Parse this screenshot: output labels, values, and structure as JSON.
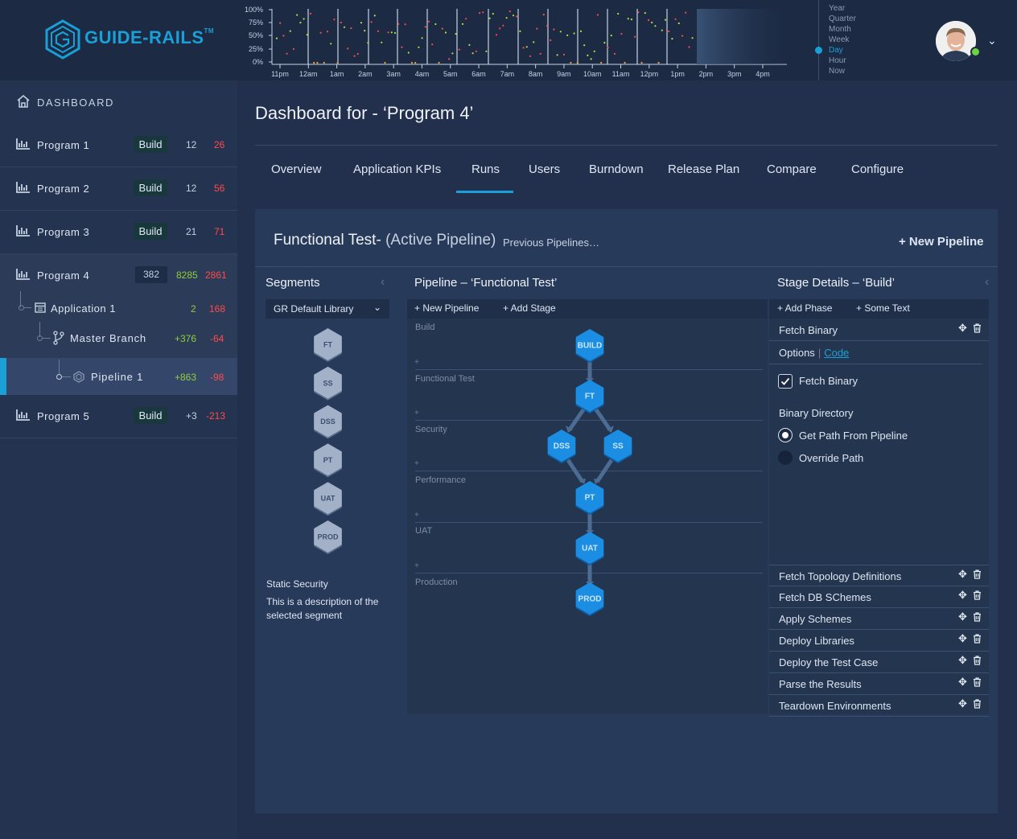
{
  "brand": {
    "logo_text": "GUIDE-RAILS",
    "logo_tm": "TM",
    "accent": "#1aa0d6"
  },
  "timeline": {
    "y_ticks": [
      "100%",
      "75%",
      "50%",
      "25%",
      "0%"
    ],
    "x_ticks": [
      "11pm",
      "12am",
      "1am",
      "2am",
      "3am",
      "4am",
      "5am",
      "6am",
      "7am",
      "8am",
      "9am",
      "10am",
      "11am",
      "12pm",
      "1pm",
      "2pm",
      "3pm",
      "4pm"
    ],
    "periods": [
      "Year",
      "Quarter",
      "Month",
      "Week",
      "Day",
      "Hour",
      "Now"
    ],
    "active_period": "Day"
  },
  "user": {
    "avatar_icon": "avatar-icon",
    "status": "online"
  },
  "sidebar": {
    "dashboard_label": "DASHBOARD",
    "programs": [
      {
        "name": "Program 1",
        "badge": "Build",
        "n1": "12",
        "n2": "26"
      },
      {
        "name": "Program 2",
        "badge": "Build",
        "n1": "12",
        "n2": "56"
      },
      {
        "name": "Program 3",
        "badge": "Build",
        "n1": "21",
        "n2": "71"
      },
      {
        "name": "Program 4",
        "badge": "382",
        "n1": "8285",
        "n2": "2861"
      },
      {
        "name": "Program 5",
        "badge": "Build",
        "n1": "+3",
        "n2": "-213"
      }
    ],
    "tree": {
      "application": {
        "name": "Application 1",
        "n1": "2",
        "n2": "168"
      },
      "branch": {
        "name": "Master Branch",
        "n1": "+376",
        "n2": "-64"
      },
      "pipeline": {
        "name": "Pipeline 1",
        "n1": "+863",
        "n2": "-98"
      }
    }
  },
  "main": {
    "title": "Dashboard for - ‘Program 4’",
    "tabs": [
      "Overview",
      "Application KPIs",
      "Runs",
      "Users",
      "Burndown",
      "Release Plan",
      "Compare",
      "Configure"
    ],
    "active_tab": "Runs"
  },
  "panel": {
    "title": "Functional Test-",
    "title_sub": "(Active Pipeline)",
    "previous_link": "Previous Pipelines…",
    "new_pipeline": "+ New Pipeline"
  },
  "segments": {
    "title": "Segments",
    "library": "GR Default Library",
    "items": [
      "FT",
      "SS",
      "DSS",
      "PT",
      "UAT",
      "PROD"
    ],
    "desc_title": "Static Security",
    "desc": "This is a description of the selected segment"
  },
  "pipeline": {
    "title": "Pipeline – ‘Functional Test’",
    "toolbar": [
      "+ New Pipeline",
      "+ Add Stage"
    ],
    "phases": [
      "Build",
      "Functional Test",
      "Security",
      "Performance",
      "UAT",
      "Production"
    ],
    "stages": [
      "BUILD",
      "FT",
      "DSS",
      "SS",
      "PT",
      "UAT",
      "PROD"
    ]
  },
  "stage_details": {
    "title": "Stage Details – ‘Build’",
    "toolbar": [
      "+ Add Phase",
      "+ Some Text"
    ],
    "open_step": "Fetch Binary",
    "options_label": "Options",
    "code_label": "Code",
    "fetch_binary_label": "Fetch Binary",
    "fetch_binary_checked": true,
    "binary_dir_label": "Binary Directory",
    "radio_options": [
      "Get Path From Pipeline",
      "Override Path"
    ],
    "radio_selected": "Get Path From Pipeline",
    "steps": [
      "Fetch Topology Definitions",
      "Fetch DB SChemes",
      "Apply Schemes",
      "Deploy Libraries",
      "Deploy the Test Case",
      "Parse the Results",
      "Teardown Environments"
    ]
  }
}
